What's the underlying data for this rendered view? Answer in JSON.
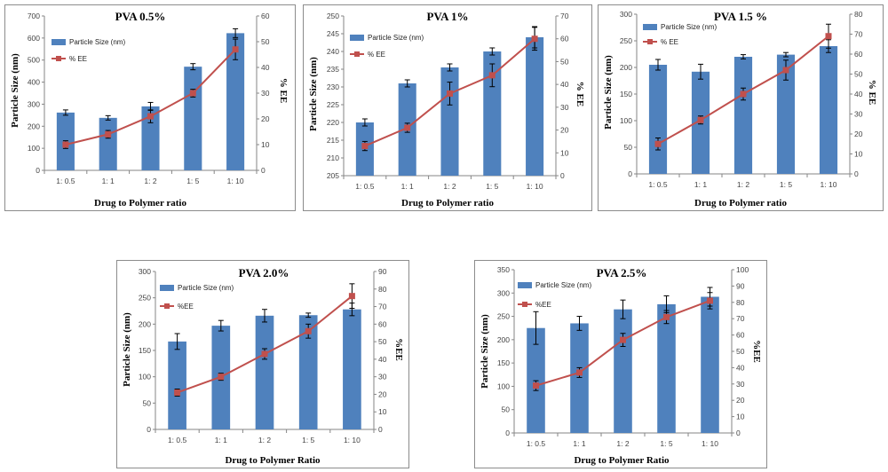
{
  "colors": {
    "bar": "#4f81bd",
    "line": "#c0504d",
    "axis": "#868686",
    "error": "#000000"
  },
  "charts": [
    {
      "title": "PVA 0.5%",
      "xlabel": "Drug to Polymer ratio",
      "ylabel": "Particle Size (nm)",
      "y2label": "% EE",
      "legend_bar": "Particle Size (nm)",
      "legend_line": "% EE"
    },
    {
      "title": "PVA 1%",
      "xlabel": "Drug to Polymer ratio",
      "ylabel": "Particle Size (nm)",
      "y2label": "% EE",
      "legend_bar": "Particle Size (nm)",
      "legend_line": "% EE"
    },
    {
      "title": "PVA 1.5 %",
      "xlabel": "Drug to Polymer ratio",
      "ylabel": "Particle Size (nm)",
      "y2label": "% EE",
      "legend_bar": "Particle Size (nm)",
      "legend_line": "% EE"
    },
    {
      "title": "PVA 2.0%",
      "xlabel": "Drug to Polymer Ratio",
      "ylabel": "Particle Size (nm)",
      "y2label": "%EE",
      "legend_bar": "Particle Size (nm)",
      "legend_line": "%EE"
    },
    {
      "title": "PVA 2.5%",
      "xlabel": "Drug to Polymer Ratio",
      "ylabel": "Particle Size (nm)",
      "y2label": "%EE",
      "legend_bar": "Particle Size (nm)",
      "legend_line": "%EE"
    }
  ],
  "chart_data": [
    {
      "type": "bar",
      "title": "PVA 0.5%",
      "categories": [
        "1: 0.5",
        "1: 1",
        "1: 2",
        "1: 5",
        "1: 10"
      ],
      "xlabel": "Drug to Polymer ratio",
      "ylabel": "Particle Size (nm)",
      "ylim": [
        0,
        700
      ],
      "yticks": [
        0,
        100,
        200,
        300,
        400,
        500,
        600,
        700
      ],
      "y2label": "% EE",
      "y2lim": [
        0,
        60
      ],
      "y2ticks": [
        0,
        10,
        20,
        30,
        40,
        50,
        60
      ],
      "legend_position": "top-left",
      "series": [
        {
          "name": "Particle Size (nm)",
          "type": "bar",
          "axis": "left",
          "values": [
            262,
            238,
            290,
            470,
            622
          ],
          "errors": [
            12,
            10,
            18,
            14,
            20
          ]
        },
        {
          "name": "% EE",
          "type": "line",
          "axis": "right",
          "values": [
            10,
            14,
            21,
            30,
            47
          ],
          "errors": [
            1.5,
            1.5,
            2.5,
            1.5,
            4
          ]
        }
      ]
    },
    {
      "type": "bar",
      "title": "PVA 1%",
      "categories": [
        "1: 0.5",
        "1: 1",
        "1: 2",
        "1: 5",
        "1: 10"
      ],
      "xlabel": "Drug to Polymer ratio",
      "ylabel": "Particle Size (nm)",
      "ylim": [
        205,
        250
      ],
      "yticks": [
        205,
        210,
        215,
        220,
        225,
        230,
        235,
        240,
        245,
        250
      ],
      "y2label": "% EE",
      "y2lim": [
        0,
        70
      ],
      "y2ticks": [
        0,
        10,
        20,
        30,
        40,
        50,
        60,
        70
      ],
      "legend_position": "top-left",
      "series": [
        {
          "name": "Particle Size (nm)",
          "type": "bar",
          "axis": "left",
          "values": [
            220,
            231,
            235.5,
            240,
            244
          ],
          "errors": [
            1,
            1,
            1,
            1,
            3
          ]
        },
        {
          "name": "% EE",
          "type": "line",
          "axis": "right",
          "values": [
            13,
            21,
            36,
            44,
            60
          ],
          "errors": [
            2,
            2,
            5,
            5,
            5
          ]
        }
      ]
    },
    {
      "type": "bar",
      "title": "PVA 1.5 %",
      "categories": [
        "1: 0.5",
        "1: 1",
        "1: 2",
        "1: 5",
        "1: 10"
      ],
      "xlabel": "Drug to Polymer ratio",
      "ylabel": "Particle Size (nm)",
      "ylim": [
        0,
        300
      ],
      "yticks": [
        0,
        50,
        100,
        150,
        200,
        250,
        300
      ],
      "y2label": "% EE",
      "y2lim": [
        0,
        80
      ],
      "y2ticks": [
        0,
        10,
        20,
        30,
        40,
        50,
        60,
        70,
        80
      ],
      "legend_position": "top-left",
      "series": [
        {
          "name": "Particle Size (nm)",
          "type": "bar",
          "axis": "left",
          "values": [
            205,
            192,
            220,
            224,
            240
          ],
          "errors": [
            10,
            14,
            4,
            4,
            12
          ]
        },
        {
          "name": "% EE",
          "type": "line",
          "axis": "right",
          "values": [
            15,
            27,
            40,
            52,
            69
          ],
          "errors": [
            3,
            2,
            3,
            5,
            6
          ]
        }
      ]
    },
    {
      "type": "bar",
      "title": "PVA 2.0%",
      "categories": [
        "1: 0.5",
        "1: 1",
        "1: 2",
        "1: 5",
        "1: 10"
      ],
      "xlabel": "Drug to Polymer Ratio",
      "ylabel": "Particle Size (nm)",
      "ylim": [
        0,
        300
      ],
      "yticks": [
        0,
        50,
        100,
        150,
        200,
        250,
        300
      ],
      "y2label": "%EE",
      "y2lim": [
        0,
        90
      ],
      "y2ticks": [
        0,
        10,
        20,
        30,
        40,
        50,
        60,
        70,
        80,
        90
      ],
      "legend_position": "top-left",
      "series": [
        {
          "name": "Particle Size (nm)",
          "type": "bar",
          "axis": "left",
          "values": [
            167,
            197,
            216,
            217,
            228
          ],
          "errors": [
            15,
            10,
            12,
            4,
            12
          ]
        },
        {
          "name": "%EE",
          "type": "line",
          "axis": "right",
          "values": [
            21,
            30,
            43,
            56,
            76
          ],
          "errors": [
            2,
            2,
            3,
            4,
            7
          ]
        }
      ]
    },
    {
      "type": "bar",
      "title": "PVA 2.5%",
      "categories": [
        "1: 0.5",
        "1: 1",
        "1: 2",
        "1: 5",
        "1: 10"
      ],
      "xlabel": "Drug to Polymer Ratio",
      "ylabel": "Particle Size (nm)",
      "ylim": [
        0,
        350
      ],
      "yticks": [
        0,
        50,
        100,
        150,
        200,
        250,
        300,
        350
      ],
      "y2label": "%EE",
      "y2lim": [
        0,
        100
      ],
      "y2ticks": [
        0,
        10,
        20,
        30,
        40,
        50,
        60,
        70,
        80,
        90,
        100
      ],
      "legend_position": "top-left",
      "series": [
        {
          "name": "Particle Size (nm)",
          "type": "bar",
          "axis": "left",
          "values": [
            225,
            235,
            265,
            276,
            292
          ],
          "errors": [
            35,
            15,
            20,
            18,
            20
          ]
        },
        {
          "name": "%EE",
          "type": "line",
          "axis": "right",
          "values": [
            29,
            37,
            57,
            71,
            81
          ],
          "errors": [
            3,
            3,
            4,
            4,
            5
          ]
        }
      ]
    }
  ]
}
